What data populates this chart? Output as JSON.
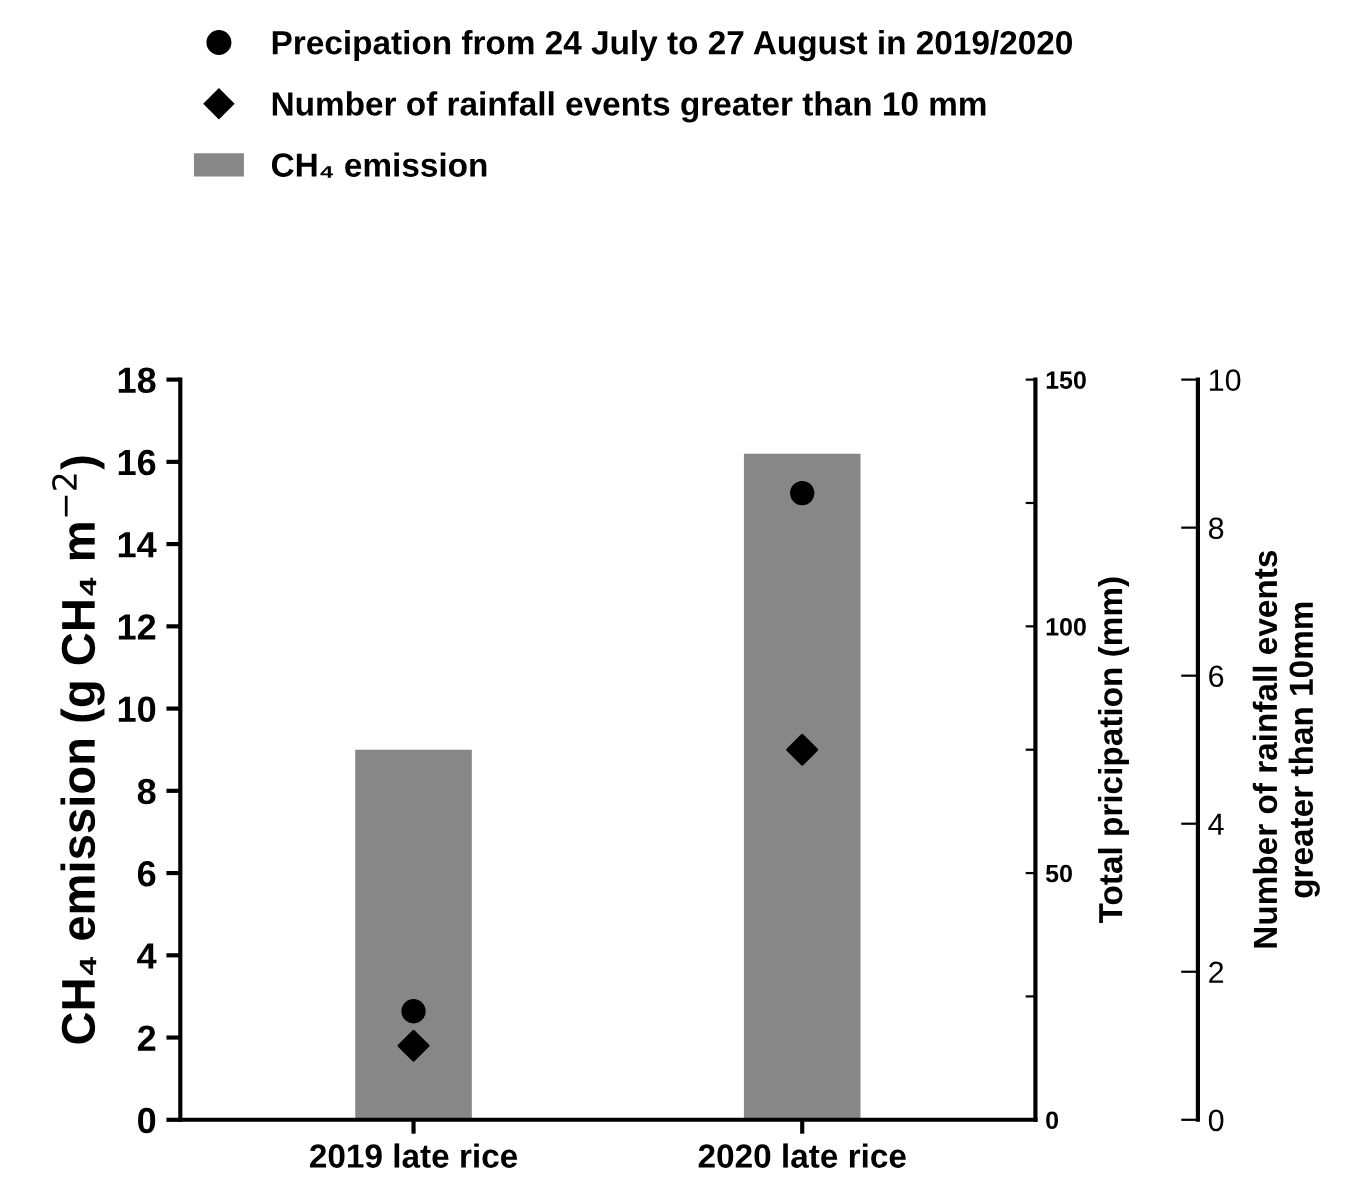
{
  "chart_data": {
    "type": "bar",
    "categories": [
      "2019 late rice",
      "2020 late rice"
    ],
    "series": [
      {
        "name": "Precipation from 24 July to 27 August in 2019/2020",
        "type": "scatter",
        "marker": "circle",
        "axis": "y2",
        "color": "#000000",
        "values": [
          22,
          127
        ]
      },
      {
        "name": "Number of rainfall events greater than 10 mm",
        "type": "scatter",
        "marker": "diamond",
        "axis": "y3",
        "color": "#000000",
        "values": [
          1.0,
          5.0
        ]
      },
      {
        "name": "CH₄ emission",
        "color": "#878787",
        "values": [
          9.0,
          16.2
        ]
      }
    ],
    "ylabel": "CH₄ emission (g CH₄ m$^{−2}$)",
    "y2label": "Total pricipation (mm)",
    "y3label": "Number of rainfall events\ngreater than 10mm",
    "ylim": [
      0,
      18
    ],
    "yticks": [
      0,
      2,
      4,
      6,
      8,
      10,
      12,
      14,
      16,
      18
    ],
    "y2lim": [
      0,
      150
    ],
    "y2ticks": [
      0,
      {
        "value": 25,
        "label": null
      },
      50,
      {
        "value": 75,
        "label": null
      },
      100,
      {
        "value": 125,
        "label": null
      },
      150
    ],
    "y3lim": [
      0,
      10
    ],
    "y3ticks": [
      0,
      2,
      4,
      6,
      8,
      10
    ],
    "grid": false,
    "legend": "top"
  }
}
